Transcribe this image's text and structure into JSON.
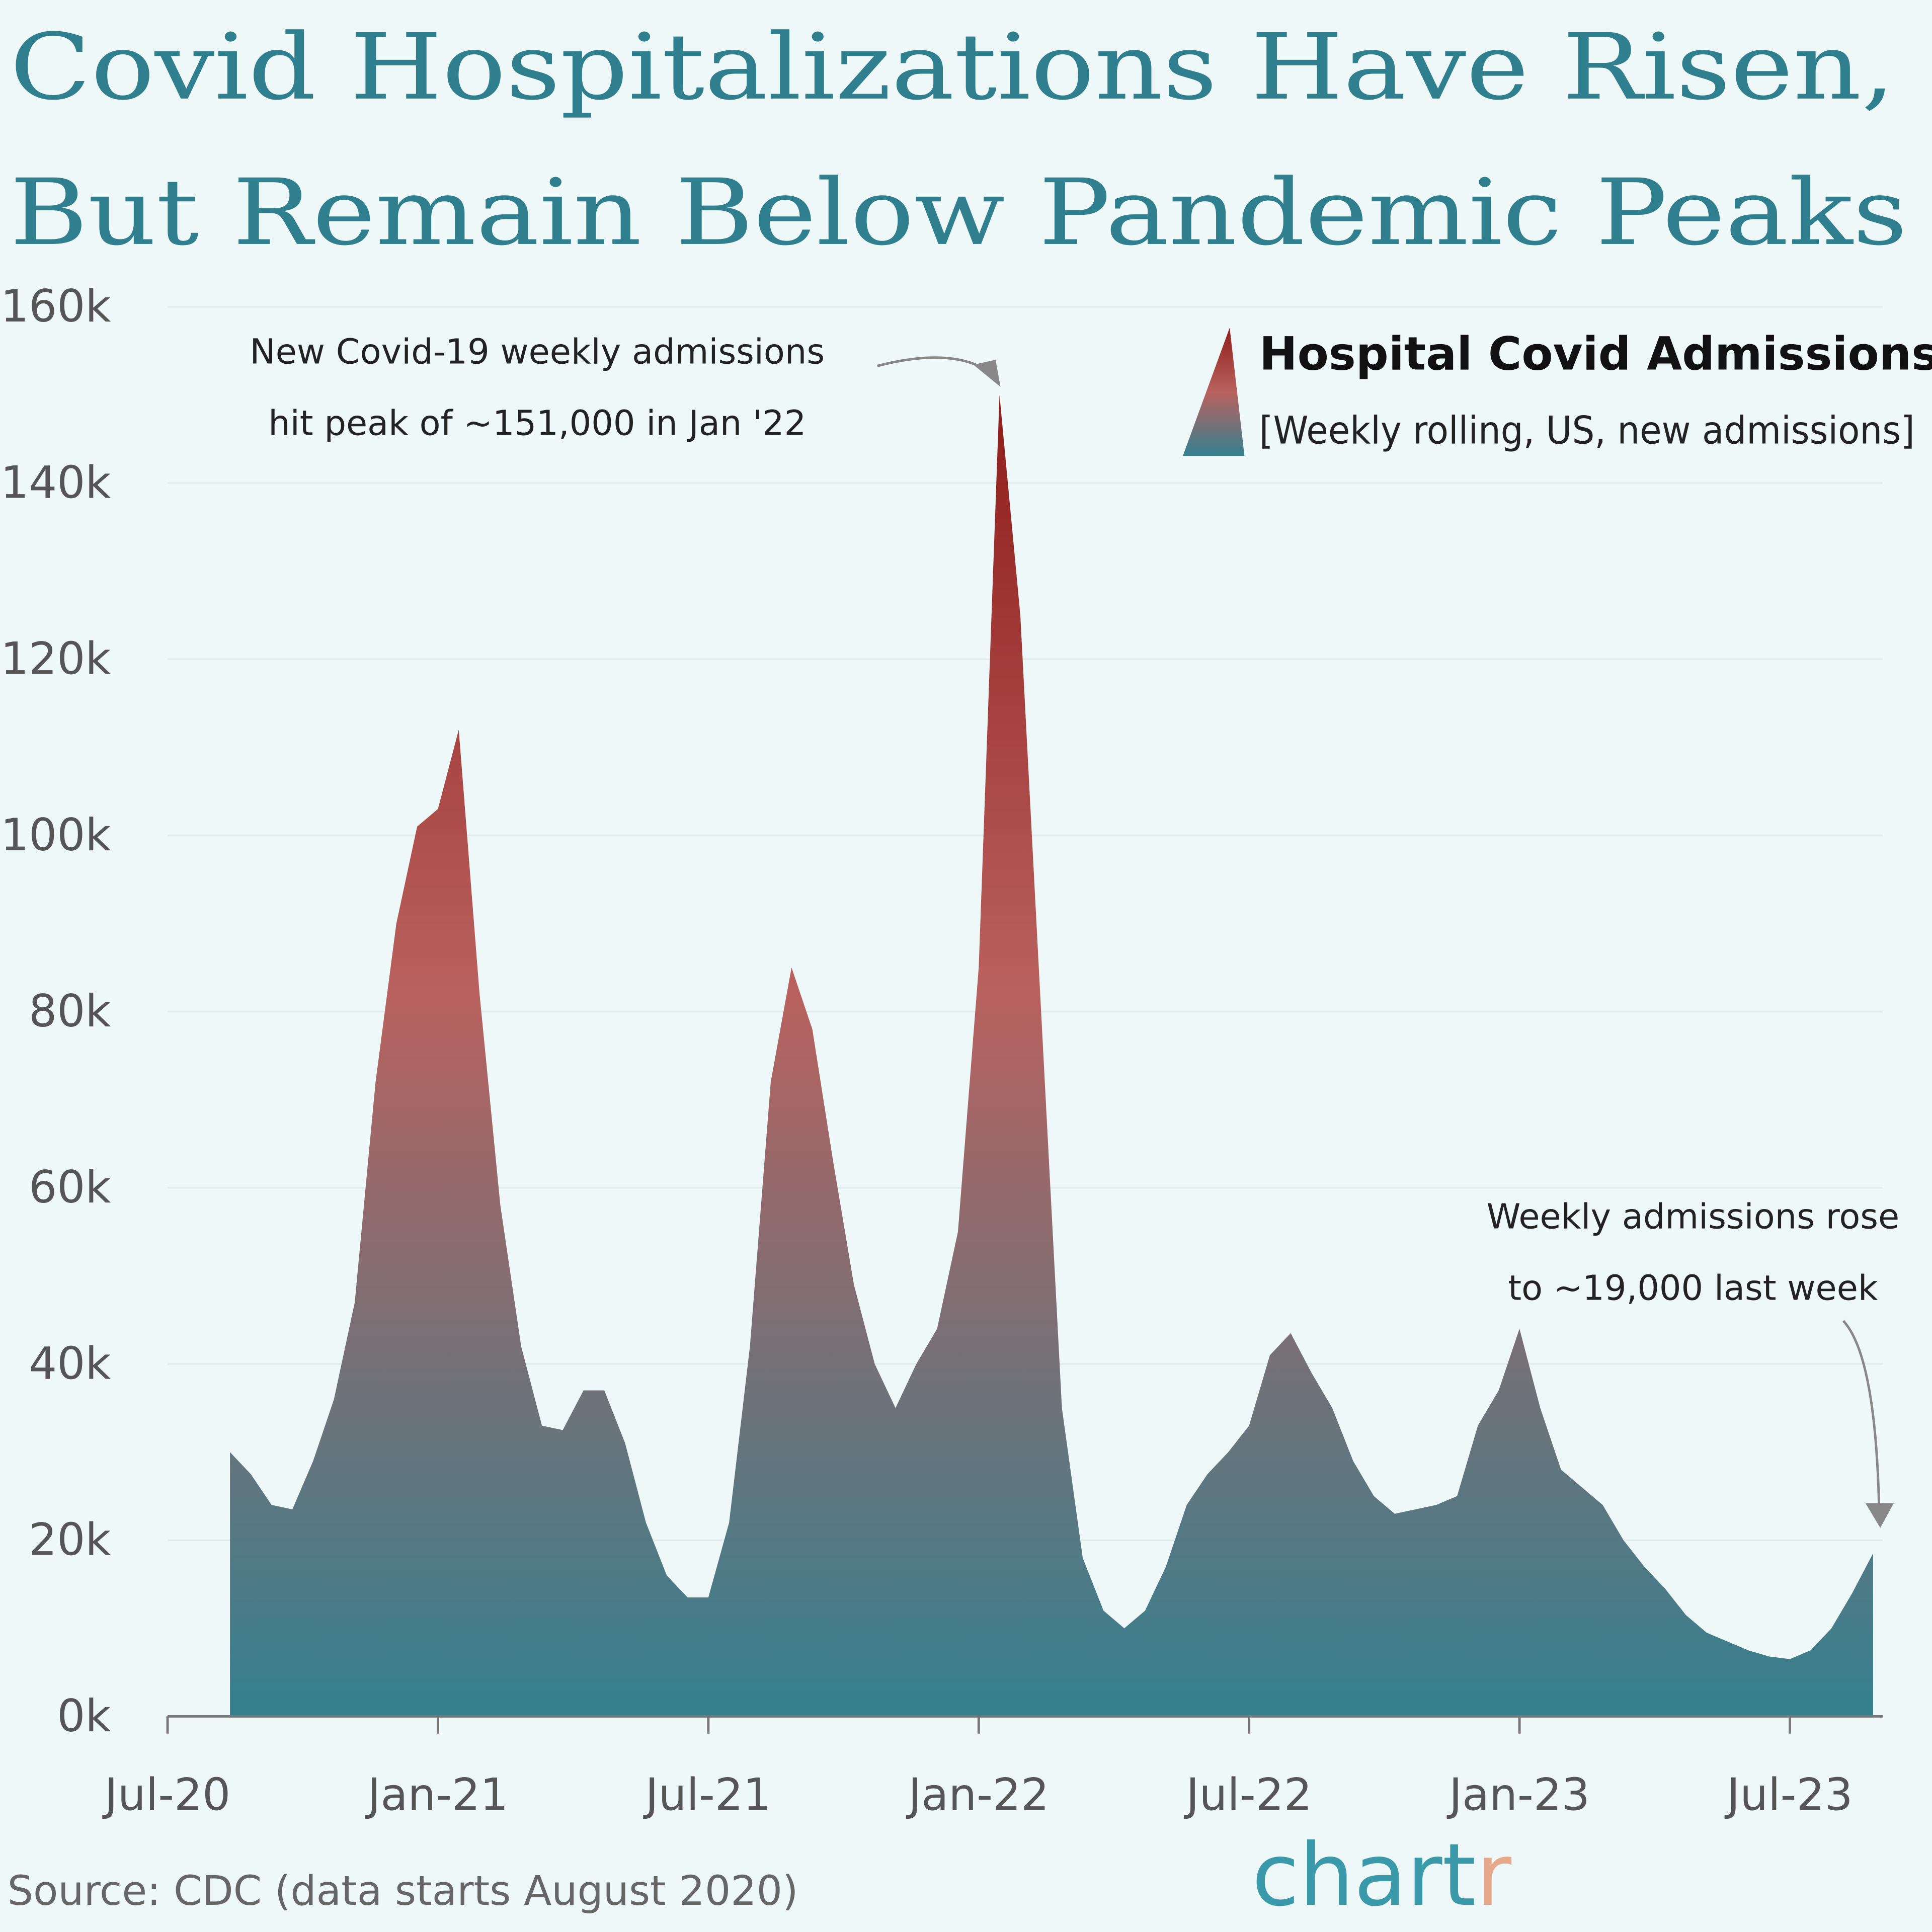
{
  "chart_data": {
    "type": "area",
    "title": [
      "Covid Hospitalizations Have Risen,",
      "But Remain Below Pandemic Peaks"
    ],
    "legend": {
      "title": "Hospital Covid Admissions",
      "subtitle": "[Weekly rolling, US, new admissions]"
    },
    "annotations": [
      [
        "New Covid-19 weekly admissions",
        "hit peak of ~151,000 in Jan '22"
      ],
      [
        "Weekly admissions rose",
        "to ~19,000 last week"
      ]
    ],
    "source": "Source: CDC (data starts August 2020)",
    "logo": [
      "chart",
      "r"
    ],
    "colors": [
      "#34808f",
      "#b9615e",
      "#8f1d1b"
    ],
    "categories": [
      "Jul-20",
      null,
      null,
      null,
      null,
      null,
      null,
      null,
      null,
      null,
      null,
      null,
      null,
      "Jan-21",
      null,
      null,
      null,
      null,
      null,
      null,
      null,
      null,
      null,
      null,
      null,
      null,
      "Jul-21",
      null,
      null,
      null,
      null,
      null,
      null,
      null,
      null,
      null,
      null,
      null,
      null,
      "Jan-22",
      null,
      null,
      null,
      null,
      null,
      null,
      null,
      null,
      null,
      null,
      null,
      null,
      "Jul-22",
      null,
      null,
      null,
      null,
      null,
      null,
      null,
      null,
      null,
      null,
      null,
      null,
      "Jan-23",
      null,
      null,
      null,
      null,
      null,
      null,
      null,
      null,
      null,
      null,
      null,
      null,
      "Jul-23",
      null,
      null,
      null,
      null
    ],
    "values": [
      null,
      null,
      null,
      30,
      27.5,
      24,
      23.5,
      29,
      36,
      47,
      72,
      90,
      101,
      103,
      112,
      82,
      58,
      42,
      33,
      32.5,
      37,
      37,
      31,
      22,
      16,
      13.5,
      13.5,
      22,
      42,
      72,
      85,
      78,
      63,
      49,
      40,
      35,
      40,
      44,
      55,
      85,
      150,
      125,
      80,
      35,
      18,
      12,
      10,
      12,
      17,
      24,
      27.5,
      30,
      33,
      41,
      43.5,
      39,
      35,
      29,
      25,
      23,
      23.5,
      24,
      25,
      33,
      37,
      44,
      35,
      28,
      26,
      24,
      20,
      17,
      14.5,
      11.5,
      9.5,
      8.5,
      7.5,
      6.8,
      6.5,
      7.5,
      10,
      14,
      18.5
    ],
    "ylim": [
      0,
      160
    ],
    "yticks": [
      {
        "value": 0,
        "label": "0k"
      },
      {
        "value": 20,
        "label": "20k"
      },
      {
        "value": 40,
        "label": "40k"
      },
      {
        "value": 60,
        "label": "60k"
      },
      {
        "value": 80,
        "label": "80k"
      },
      {
        "value": 100,
        "label": "100k"
      },
      {
        "value": 120,
        "label": "120k"
      },
      {
        "value": 140,
        "label": "140k"
      },
      {
        "value": 160,
        "label": "160k"
      }
    ],
    "grid": true
  }
}
